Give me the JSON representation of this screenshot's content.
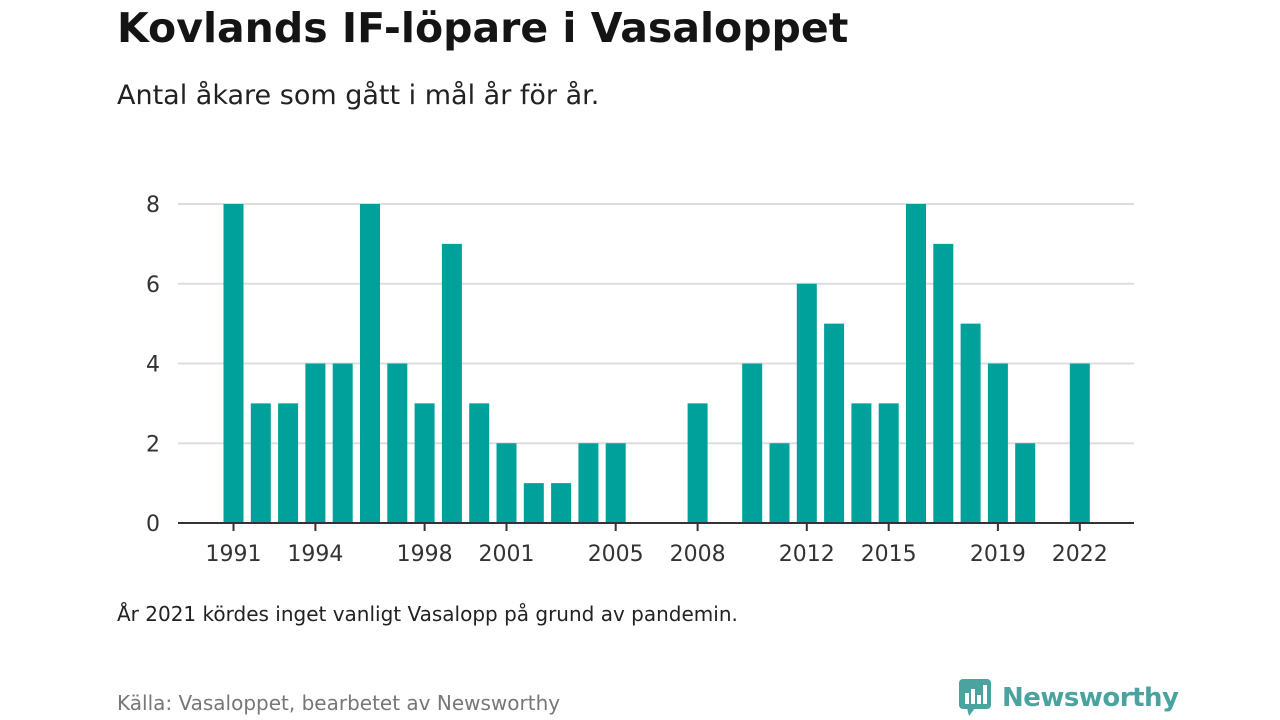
{
  "title": "Kovlands IF-löpare i Vasaloppet",
  "subtitle": "Antal åkare som gått i mål år för år.",
  "note": "År 2021 kördes inget vanligt Vasalopp på grund av pandemin.",
  "source": "Källa: Vasaloppet, bearbetet av Newsworthy",
  "brand": {
    "name": "Newsworthy",
    "icon": "newsworthy-logo-icon",
    "color": "#4aa39f"
  },
  "colors": {
    "bar": "#00a19a",
    "grid": "#dddddd",
    "axis": "#333333"
  },
  "chart_data": {
    "type": "bar",
    "x": [
      1991,
      1992,
      1993,
      1994,
      1995,
      1996,
      1997,
      1998,
      1999,
      2000,
      2001,
      2002,
      2003,
      2004,
      2005,
      2006,
      2007,
      2008,
      2009,
      2010,
      2011,
      2012,
      2013,
      2014,
      2015,
      2016,
      2017,
      2018,
      2019,
      2020,
      2021,
      2022
    ],
    "values": [
      8,
      3,
      3,
      4,
      4,
      8,
      4,
      3,
      7,
      3,
      2,
      1,
      1,
      2,
      2,
      0,
      0,
      3,
      0,
      4,
      2,
      6,
      5,
      3,
      3,
      8,
      7,
      5,
      4,
      2,
      0,
      4
    ],
    "xticks": [
      "1991",
      "1994",
      "1998",
      "2001",
      "2005",
      "2008",
      "2012",
      "2015",
      "2019",
      "2022"
    ],
    "yticks": [
      "0",
      "2",
      "4",
      "6",
      "8"
    ],
    "ylim": [
      0,
      8
    ],
    "grid": true,
    "title": "Kovlands IF-löpare i Vasaloppet",
    "xlabel": "",
    "ylabel": ""
  }
}
